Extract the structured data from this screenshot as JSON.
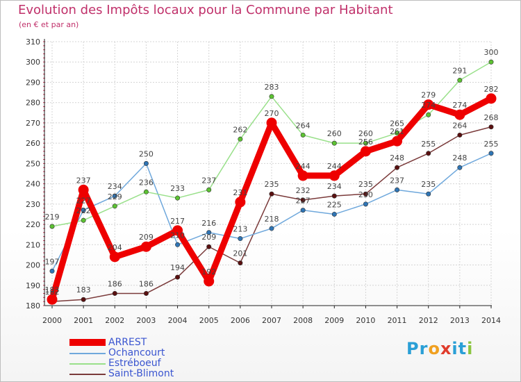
{
  "title": "Evolution des Impôts locaux pour la Commune par Habitant",
  "subtitle": "(en € et par an)",
  "logo_text": "Proxiti",
  "chart_data": {
    "type": "line",
    "x": [
      "2000",
      "2001",
      "2002",
      "2003",
      "2004",
      "2005",
      "2006",
      "2007",
      "2008",
      "2009",
      "2010",
      "2011",
      "2012",
      "2013",
      "2014"
    ],
    "ylim": [
      180,
      310
    ],
    "yticks": [
      180,
      190,
      200,
      210,
      220,
      230,
      240,
      250,
      260,
      270,
      280,
      290,
      300,
      310
    ],
    "grid": true,
    "legend_position": "bottom-left",
    "series": [
      {
        "name": "ARREST",
        "color": "#ee0000",
        "marker": "#ee0000",
        "values": [
          183,
          237,
          204,
          209,
          217,
          192,
          231,
          270,
          244,
          244,
          256,
          261,
          279,
          274,
          282
        ],
        "labels": [
          "183",
          "237",
          "204",
          "209",
          "217",
          "192",
          "231",
          "270",
          "244",
          "244",
          "256",
          "261",
          "279",
          "274",
          "282"
        ]
      },
      {
        "name": "Ochancourt",
        "color": "#6fa8dc",
        "marker": "#2f75b5",
        "values": [
          197,
          227,
          234,
          250,
          210,
          216,
          213,
          218,
          227,
          225,
          230,
          237,
          235,
          248,
          255
        ],
        "labels": [
          "197",
          "227",
          "234",
          "250",
          "210",
          "216",
          "213",
          "218",
          "227",
          "225",
          "230",
          "237",
          "235",
          "248",
          "255"
        ]
      },
      {
        "name": "Estréboeuf",
        "color": "#99e08a",
        "marker": "#5cc232",
        "values": [
          219,
          222,
          229,
          236,
          233,
          237,
          262,
          283,
          264,
          260,
          260,
          265,
          274,
          291,
          300
        ],
        "labels": [
          "219",
          "222",
          "229",
          "236",
          "233",
          "237",
          "262",
          "283",
          "264",
          "260",
          "260",
          "265",
          "274",
          "291",
          "300"
        ]
      },
      {
        "name": "Saint-Blimont",
        "color": "#7a3a3a",
        "marker": "#5a1010",
        "values": [
          182,
          183,
          186,
          186,
          194,
          209,
          201,
          235,
          232,
          234,
          235,
          248,
          255,
          264,
          268
        ],
        "labels": [
          "182",
          "183",
          "186",
          "186",
          "194",
          "209",
          "201",
          "235",
          "232",
          "234",
          "235",
          "248",
          "255",
          "264",
          "268"
        ]
      }
    ]
  }
}
